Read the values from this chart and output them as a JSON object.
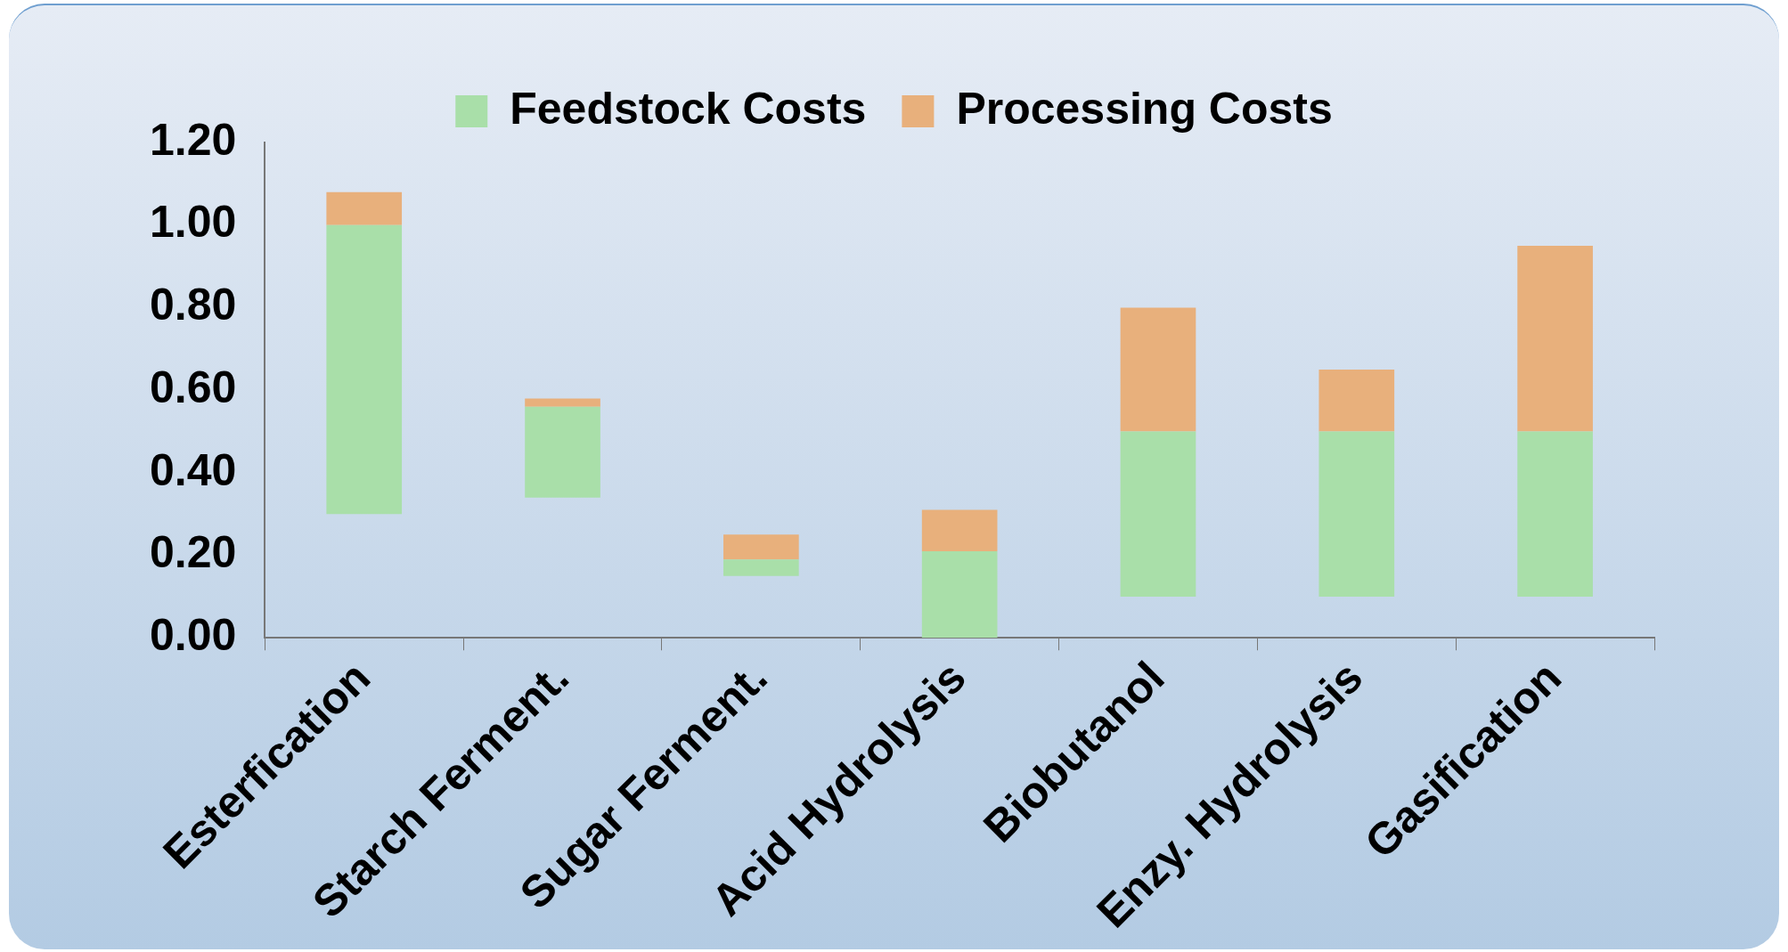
{
  "chart_data": {
    "type": "bar",
    "categories": [
      "Esterfication",
      "Starch Ferment.",
      "Sugar Ferment.",
      "Acid Hydrolysis",
      "Biobutanol",
      "Enzy. Hydrolysis",
      "Gasification"
    ],
    "series": [
      {
        "name": "Feedstock Costs",
        "color": "#a9dfa9",
        "base": [
          0.3,
          0.34,
          0.15,
          0.0,
          0.1,
          0.1,
          0.1
        ],
        "values": [
          0.7,
          0.22,
          0.04,
          0.21,
          0.4,
          0.4,
          0.4
        ]
      },
      {
        "name": "Processing Costs",
        "color": "#e8b07c",
        "base": [
          1.0,
          0.56,
          0.19,
          0.21,
          0.5,
          0.5,
          0.5
        ],
        "values": [
          0.08,
          0.02,
          0.06,
          0.1,
          0.3,
          0.15,
          0.45
        ]
      }
    ],
    "ylim": [
      0,
      1.2
    ],
    "yticks": [
      {
        "value": 0,
        "label": "0.00"
      },
      {
        "value": 0.2,
        "label": "0.20"
      },
      {
        "value": 0.4,
        "label": "0.40"
      },
      {
        "value": 0.6,
        "label": "0.60"
      },
      {
        "value": 0.8,
        "label": "0.80"
      },
      {
        "value": 1.0,
        "label": "1.00"
      },
      {
        "value": 1.2,
        "label": "1.20"
      }
    ],
    "grid": false,
    "legend": "top"
  }
}
